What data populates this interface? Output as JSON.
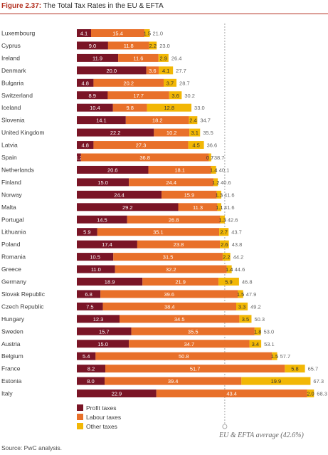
{
  "figure": {
    "label": "Figure 2.37:",
    "title": "The Total Tax Rates in the EU & EFTA"
  },
  "source": "Source: PwC analysis.",
  "average_caption": "EU & EFTA average (42.6%)",
  "colors": {
    "profit": "#7a1526",
    "labour": "#e8702a",
    "other": "#f2b705",
    "label_dark": "#ffffff",
    "label_light": "#333333",
    "total": "#666666",
    "avg_line": "#aaaaaa",
    "title_accent": "#b33020"
  },
  "chart_data": {
    "type": "bar",
    "orientation": "horizontal",
    "stacked": true,
    "categories": [
      "Luxembourg",
      "Cyprus",
      "Ireland",
      "Denmark",
      "Bulgaria",
      "Switzerland",
      "Iceland",
      "Slovenia",
      "United Kingdom",
      "Latvia",
      "Spain",
      "Netherlands",
      "Finland",
      "Norway",
      "Malta",
      "Portugal",
      "Lithuania",
      "Poland",
      "Romania",
      "Greece",
      "Germany",
      "Slovak Republic",
      "Czech Republic",
      "Hungary",
      "Sweden",
      "Austria",
      "Belgium",
      "France",
      "Estonia",
      "Italy"
    ],
    "series": [
      {
        "name": "Profit taxes",
        "values": [
          4.1,
          9.0,
          11.9,
          20.0,
          4.8,
          8.9,
          10.4,
          14.1,
          22.2,
          4.8,
          1.2,
          20.6,
          15.0,
          24.4,
          29.2,
          14.5,
          5.9,
          17.4,
          10.5,
          11.0,
          18.9,
          6.8,
          7.5,
          12.3,
          15.7,
          15.0,
          5.4,
          8.2,
          8.0,
          22.9
        ]
      },
      {
        "name": "Labour taxes",
        "values": [
          15.4,
          11.8,
          11.6,
          3.6,
          20.2,
          17.7,
          9.8,
          18.2,
          10.2,
          27.3,
          36.8,
          18.1,
          24.4,
          15.9,
          11.3,
          26.8,
          35.1,
          23.8,
          31.5,
          32.2,
          21.9,
          39.6,
          38.4,
          34.5,
          35.5,
          34.7,
          50.8,
          51.7,
          39.4,
          43.4
        ]
      },
      {
        "name": "Other taxes",
        "values": [
          1.5,
          2.2,
          2.9,
          4.1,
          3.7,
          3.6,
          12.8,
          2.4,
          3.1,
          4.5,
          0.7,
          1.4,
          1.2,
          1.3,
          1.1,
          1.3,
          2.7,
          2.6,
          2.2,
          1.4,
          5.9,
          1.5,
          3.3,
          3.5,
          1.8,
          3.4,
          1.5,
          5.8,
          19.9,
          2.0
        ]
      }
    ],
    "totals": [
      21.0,
      23.0,
      26.4,
      27.7,
      28.7,
      30.2,
      33.0,
      34.7,
      35.5,
      36.6,
      38.7,
      40.1,
      40.6,
      41.6,
      41.6,
      42.6,
      43.7,
      43.8,
      44.2,
      44.6,
      46.8,
      47.9,
      49.2,
      50.3,
      53.0,
      53.1,
      57.7,
      65.7,
      67.3,
      68.3
    ],
    "reference_line": {
      "value": 42.6
    },
    "xlim": [
      0,
      68.3
    ],
    "legend_position": "bottom-left",
    "grid": false
  }
}
